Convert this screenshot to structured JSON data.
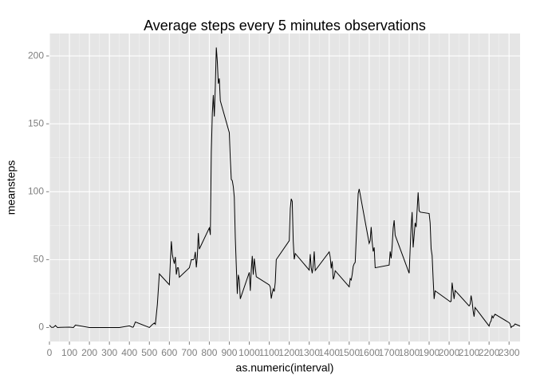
{
  "chart_data": {
    "type": "line",
    "title": "Average steps every 5 minutes observations",
    "x_label": "as.numeric(interval)",
    "y_label": "meansteps",
    "color": "#000000",
    "grid": true,
    "x": [
      0,
      10,
      20,
      30,
      40,
      55,
      100,
      120,
      130,
      200,
      300,
      350,
      400,
      415,
      420,
      430,
      500,
      515,
      525,
      530,
      540,
      550,
      600,
      605,
      610,
      615,
      620,
      625,
      630,
      635,
      640,
      645,
      650,
      700,
      710,
      720,
      725,
      730,
      735,
      740,
      745,
      750,
      800,
      805,
      810,
      815,
      820,
      825,
      830,
      835,
      840,
      845,
      850,
      855,
      900,
      905,
      910,
      915,
      920,
      925,
      930,
      935,
      940,
      945,
      950,
      955,
      1000,
      1005,
      1010,
      1015,
      1020,
      1025,
      1030,
      1035,
      1100,
      1105,
      1110,
      1115,
      1120,
      1125,
      1130,
      1135,
      1200,
      1205,
      1210,
      1215,
      1220,
      1225,
      1230,
      1300,
      1305,
      1310,
      1315,
      1320,
      1325,
      1330,
      1400,
      1405,
      1410,
      1415,
      1420,
      1425,
      1430,
      1500,
      1505,
      1510,
      1515,
      1520,
      1525,
      1530,
      1545,
      1550,
      1600,
      1605,
      1610,
      1615,
      1620,
      1625,
      1630,
      1700,
      1705,
      1710,
      1715,
      1720,
      1725,
      1730,
      1800,
      1805,
      1810,
      1815,
      1820,
      1825,
      1830,
      1835,
      1845,
      1850,
      1855,
      1900,
      1905,
      1910,
      1915,
      1920,
      1925,
      1930,
      2000,
      2005,
      2010,
      2015,
      2020,
      2025,
      2030,
      2100,
      2105,
      2110,
      2115,
      2120,
      2125,
      2130,
      2200,
      2205,
      2210,
      2215,
      2220,
      2225,
      2230,
      2300,
      2305,
      2310,
      2315,
      2320,
      2325,
      2330,
      2355
    ],
    "values": [
      1.7,
      0.1,
      0.1,
      1.5,
      0,
      0.1,
      0.3,
      0,
      1.8,
      0,
      0,
      0,
      1.2,
      0.2,
      0.4,
      4.1,
      0,
      2.2,
      3.3,
      2.4,
      17,
      39.5,
      31.5,
      49,
      63.5,
      53.8,
      50,
      47,
      52,
      39,
      44,
      44,
      37,
      44,
      50,
      49.9,
      50.8,
      55.7,
      44.3,
      52.3,
      69.5,
      57.8,
      73.4,
      68.2,
      129.4,
      157.5,
      171.2,
      155.4,
      177.3,
      206.2,
      195.9,
      179.6,
      183.4,
      167,
      143.5,
      124,
      109.1,
      108.1,
      103.7,
      96,
      66.2,
      45.2,
      24.8,
      38.8,
      35,
      21.1,
      40.6,
      27,
      42.4,
      52.7,
      38.9,
      50.8,
      44.3,
      37.4,
      31.4,
      29.7,
      21.3,
      25.5,
      28.4,
      26.5,
      33.3,
      50,
      63.9,
      87.7,
      94.8,
      92.8,
      63.4,
      50.2,
      54.5,
      42.3,
      54,
      44,
      40,
      46,
      56,
      42,
      55.7,
      51.9,
      43.6,
      48.7,
      35.5,
      37.5,
      41.8,
      30,
      36,
      35,
      39,
      45,
      47,
      48,
      98.7,
      102,
      62,
      64,
      74,
      63,
      56,
      59,
      44,
      46,
      56,
      51,
      60,
      73,
      79,
      68,
      40,
      58,
      74,
      85,
      59,
      68,
      77,
      74,
      99.5,
      86,
      85,
      84,
      77,
      58,
      53,
      36,
      21,
      27,
      19.6,
      19,
      19.3,
      33,
      26.8,
      21,
      27.3,
      15.9,
      17.2,
      23.5,
      19.2,
      12.5,
      8,
      14.7,
      1.1,
      3.7,
      4.8,
      8.5,
      7.1,
      8.7,
      9.8,
      3.6,
      2.7,
      0,
      0.8,
      1,
      1.6,
      2.6,
      1.1
    ],
    "xlim": [
      0,
      2355
    ],
    "ylim": [
      -10.3,
      216.5
    ],
    "xticks": [
      0,
      100,
      200,
      300,
      400,
      500,
      600,
      700,
      800,
      900,
      1000,
      1100,
      1200,
      1300,
      1400,
      1500,
      1600,
      1700,
      1800,
      1900,
      2000,
      2100,
      2200,
      2300
    ],
    "yticks": [
      0,
      50,
      100,
      150,
      200
    ]
  }
}
